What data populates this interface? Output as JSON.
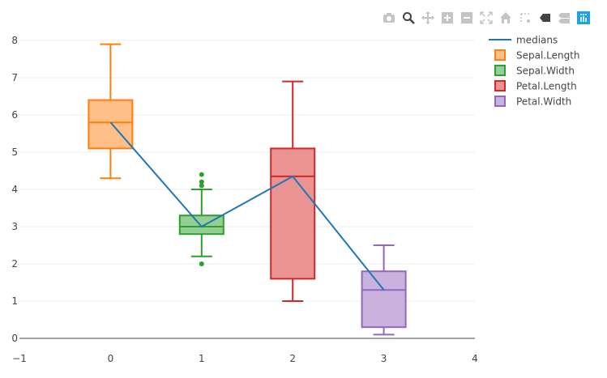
{
  "modebar": {
    "icons": [
      "camera-icon",
      "zoom-icon",
      "pan-icon",
      "zoom-in-icon",
      "zoom-out-icon",
      "autoscale-icon",
      "reset-axes-icon",
      "spike-lines-icon",
      "hover-closest-icon",
      "hover-compare-icon",
      "plotly-logo-icon"
    ],
    "color": "#c4c4c4",
    "active_color": "#444444",
    "logo_color": "#1ea2e5"
  },
  "chart_data": {
    "type": "box",
    "title": "",
    "xlabel": "",
    "ylabel": "",
    "xlim": [
      -1,
      4
    ],
    "ylim": [
      0,
      8
    ],
    "x_ticks": [
      "−1",
      "0",
      "1",
      "2",
      "3",
      "4"
    ],
    "x_tick_values": [
      -1,
      0,
      1,
      2,
      3,
      4
    ],
    "y_ticks": [
      "0",
      "1",
      "2",
      "3",
      "4",
      "5",
      "6",
      "7",
      "8"
    ],
    "y_tick_values": [
      0,
      1,
      2,
      3,
      4,
      5,
      6,
      7,
      8
    ],
    "grid": true,
    "legend_position": "top-right",
    "boxes": [
      {
        "name": "Sepal.Length",
        "x": 0,
        "min": 4.3,
        "q1": 5.1,
        "median": 5.8,
        "q3": 6.4,
        "max": 7.9,
        "outliers": [],
        "color": "#ff7f0e",
        "fill": "#ffbf86"
      },
      {
        "name": "Sepal.Width",
        "x": 1,
        "min": 2.2,
        "q1": 2.8,
        "median": 3.0,
        "q3": 3.3,
        "max": 4.0,
        "outliers": [
          2.0,
          4.1,
          4.2,
          4.4
        ],
        "color": "#2ca02c",
        "fill": "#95cf95"
      },
      {
        "name": "Petal.Length",
        "x": 2,
        "min": 1.0,
        "q1": 1.6,
        "median": 4.35,
        "q3": 5.1,
        "max": 6.9,
        "outliers": [],
        "color": "#d62728",
        "fill": "#ea9393"
      },
      {
        "name": "Petal.Width",
        "x": 3,
        "min": 0.1,
        "q1": 0.3,
        "median": 1.3,
        "q3": 1.8,
        "max": 2.5,
        "outliers": [],
        "color": "#9467bd",
        "fill": "#c9b3de"
      }
    ],
    "line": {
      "name": "medians",
      "x": [
        0,
        1,
        2,
        3
      ],
      "y": [
        5.8,
        3.0,
        4.35,
        1.3
      ],
      "color": "#1f77b4"
    }
  }
}
